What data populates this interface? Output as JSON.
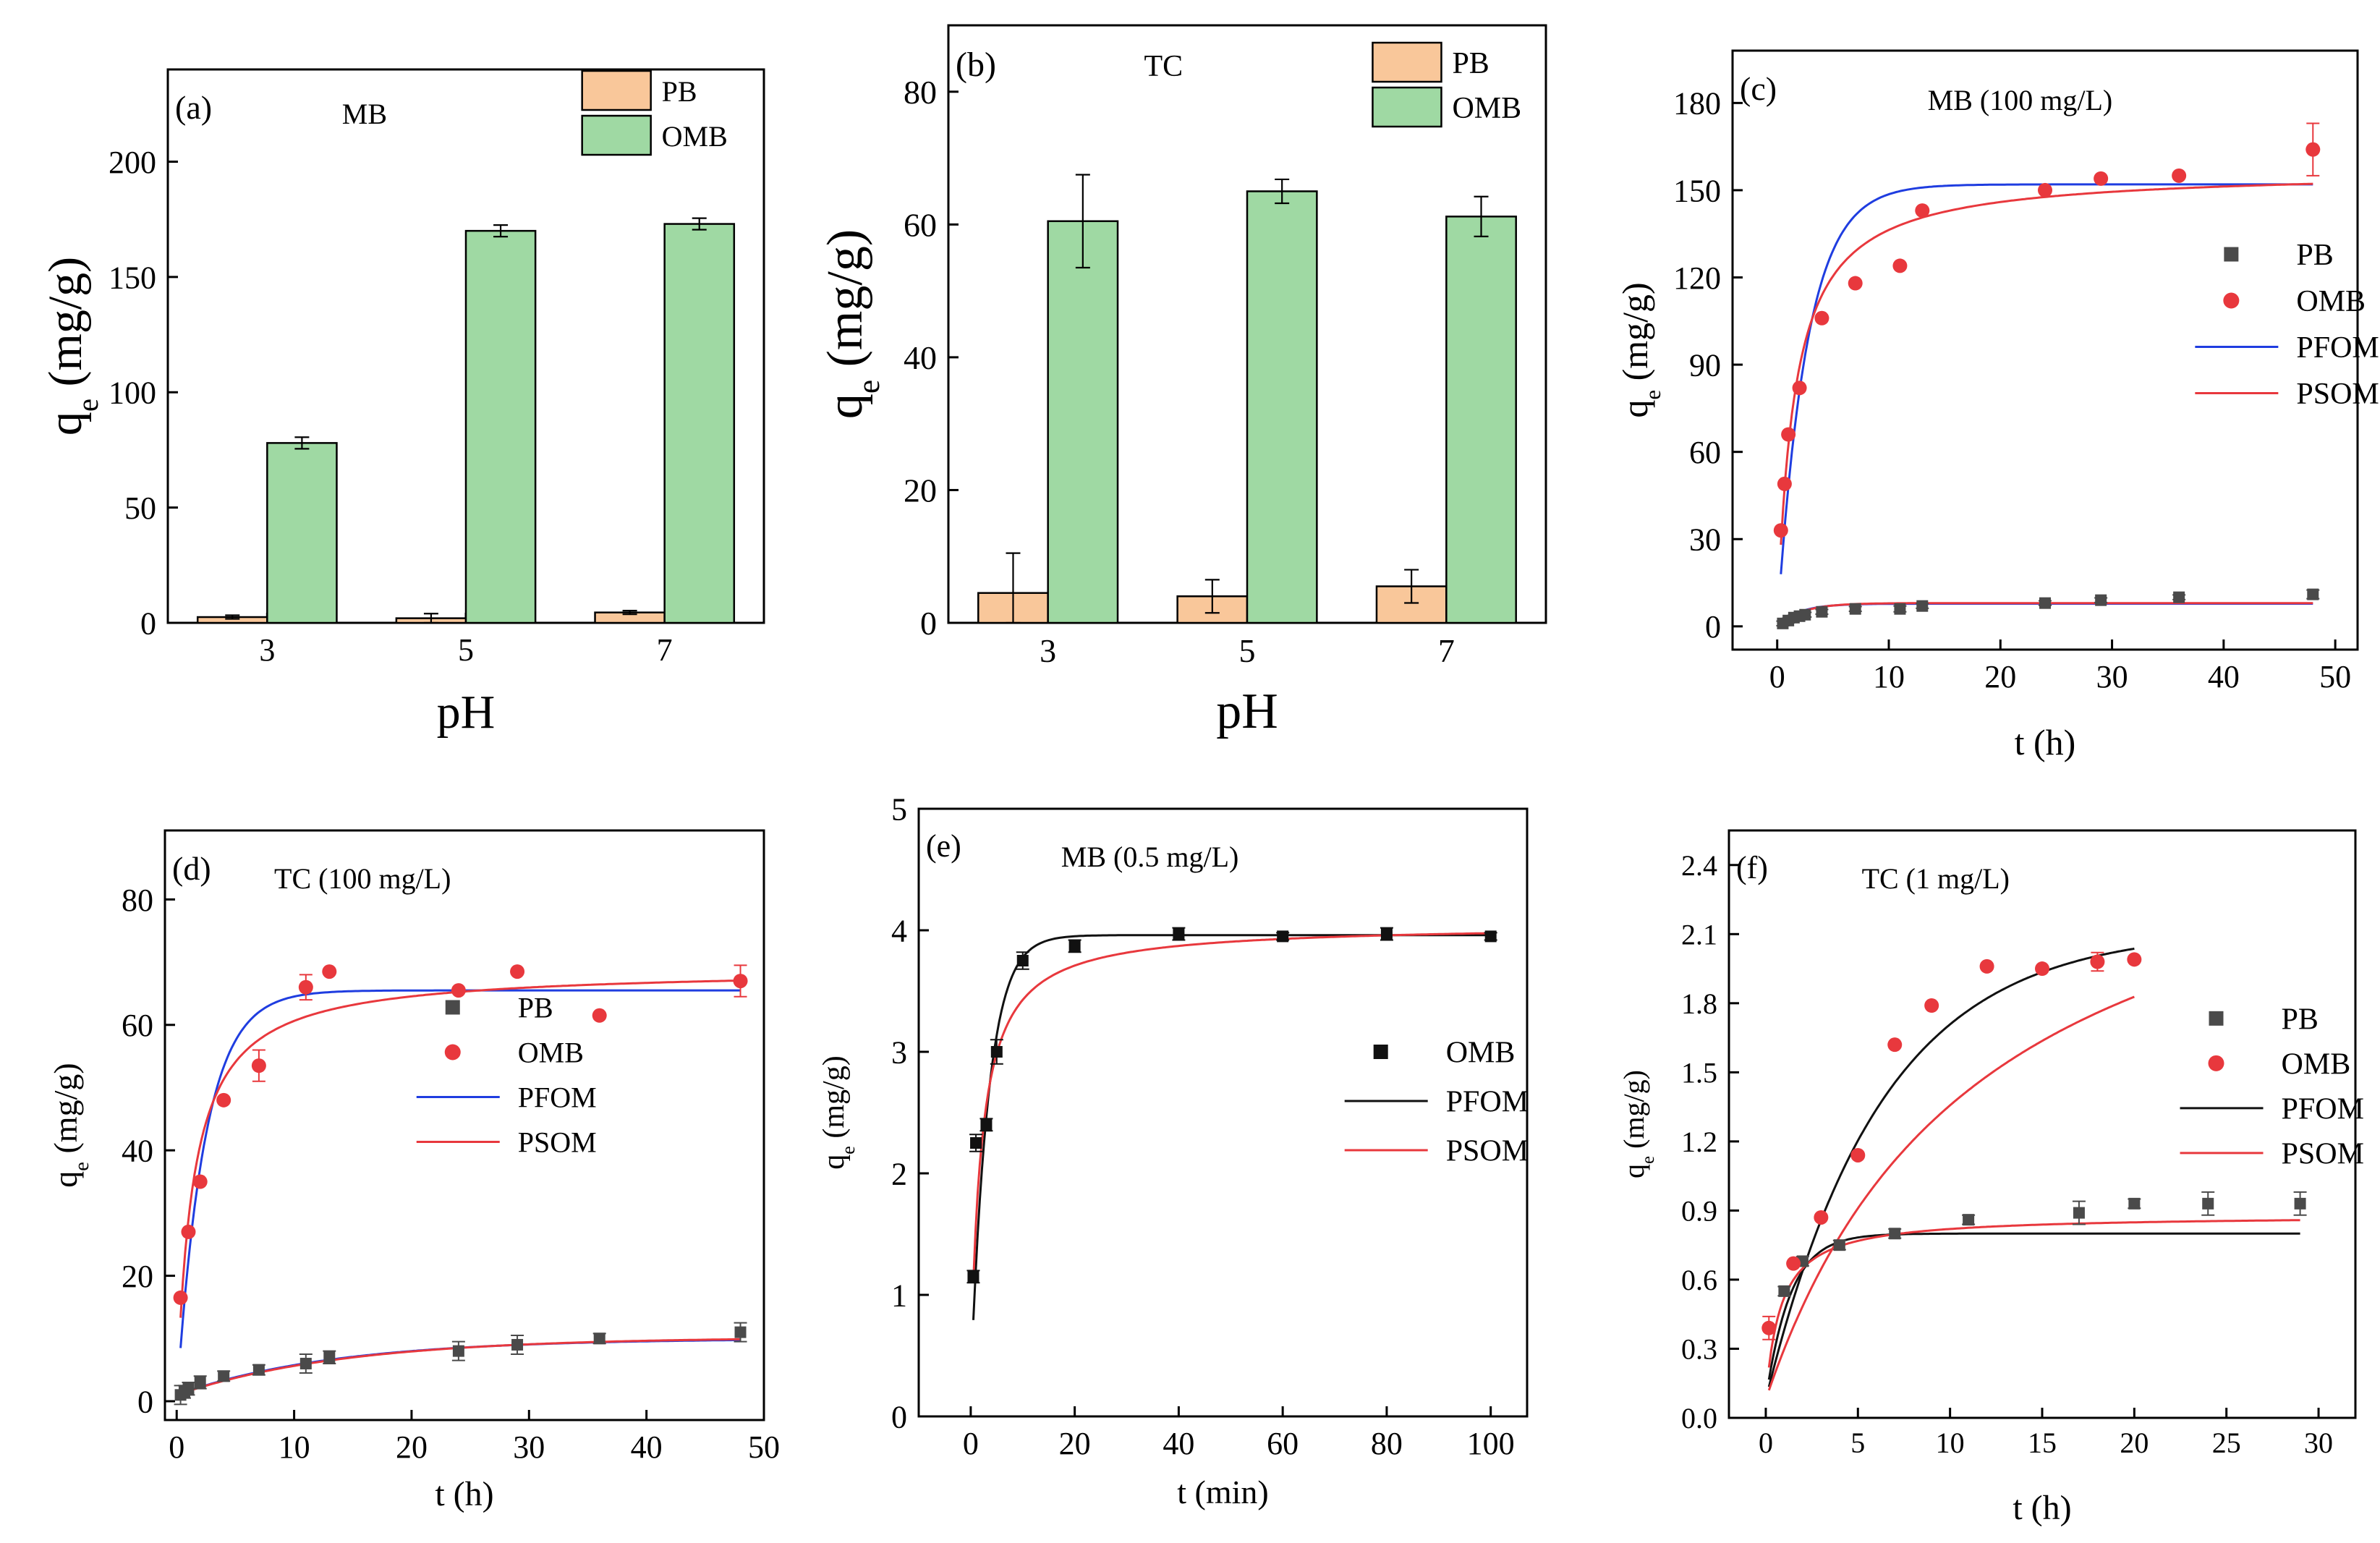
{
  "chart_data": [
    {
      "panel": "a",
      "type": "bar",
      "label": "(a)",
      "title": "MB",
      "xlabel": "pH",
      "ylabel": {
        "main": "q",
        "sub": "e",
        "unit": " (mg/g)"
      },
      "categories": [
        "3",
        "5",
        "7"
      ],
      "ylim": [
        0,
        240
      ],
      "yticks": [
        0,
        50,
        100,
        150,
        200
      ],
      "series": [
        {
          "name": "PB",
          "color": "#f9c79a",
          "values": [
            2.5,
            2,
            4.5
          ],
          "errors": [
            0.8,
            2,
            0.8
          ]
        },
        {
          "name": "OMB",
          "color": "#9fd9a3",
          "values": [
            78,
            170,
            173
          ],
          "errors": [
            2.5,
            2.5,
            2.5
          ]
        }
      ],
      "legend": "top-right"
    },
    {
      "panel": "b",
      "type": "bar",
      "label": "(b)",
      "title": "TC",
      "xlabel": "pH",
      "ylabel": {
        "main": "q",
        "sub": "e",
        "unit": " (mg/g)"
      },
      "categories": [
        "3",
        "5",
        "7"
      ],
      "ylim": [
        0,
        90
      ],
      "yticks": [
        0,
        20,
        40,
        60,
        80
      ],
      "series": [
        {
          "name": "PB",
          "color": "#f9c79a",
          "values": [
            4.5,
            4,
            5.5
          ],
          "errors": [
            6,
            2.5,
            2.5
          ]
        },
        {
          "name": "OMB",
          "color": "#9fd9a3",
          "values": [
            60.5,
            65,
            61.2
          ],
          "errors": [
            7,
            1.8,
            3
          ]
        }
      ],
      "legend": "top-right"
    },
    {
      "panel": "c",
      "type": "scatter",
      "label": "(c)",
      "title": "MB (100 mg/L)",
      "xlabel": "t (h)",
      "ylabel": {
        "main": "q",
        "sub": "e",
        "unit": " (mg/g)"
      },
      "xlim": [
        -4,
        52
      ],
      "ylim": [
        -8,
        198
      ],
      "xticks": [
        0,
        10,
        20,
        30,
        40,
        50
      ],
      "yticks": [
        0,
        30,
        60,
        90,
        120,
        150,
        180
      ],
      "legend": "middle-right",
      "series": [
        {
          "name": "PB",
          "marker": "square",
          "color": "#4a4a4a",
          "x": [
            0.5,
            1,
            1.5,
            2,
            2.5,
            4,
            7,
            11,
            13,
            24,
            29,
            36,
            48
          ],
          "y": [
            1,
            2,
            3,
            3.5,
            4,
            5,
            6,
            6,
            7,
            8,
            9,
            10,
            11
          ],
          "errors": [
            0.8,
            0.8,
            0.8,
            0.8,
            0.8,
            0.8,
            0.8,
            1,
            0.8,
            0.8,
            0.8,
            0.8,
            1.5
          ]
        },
        {
          "name": "OMB",
          "marker": "circle",
          "color": "#e8383d",
          "x": [
            0.33,
            0.66,
            1,
            2,
            4,
            7,
            11,
            13,
            24,
            29,
            36,
            48
          ],
          "y": [
            33,
            49,
            66,
            82,
            106,
            118,
            124,
            143,
            150,
            154,
            155,
            164
          ],
          "errors": [
            0,
            0,
            0,
            0,
            0,
            0,
            0,
            0,
            0,
            0,
            0,
            9
          ]
        },
        {
          "name": "PFOM",
          "type": "line",
          "color": "#1f3de0",
          "model": "pfo",
          "qe": 152,
          "k": 0.38,
          "x0": 0.33,
          "x1": 48
        },
        {
          "name": "PSOM",
          "type": "line",
          "color": "#e8383d",
          "model": "pso",
          "qe": 157,
          "k": 0.0042,
          "x0": 0.33,
          "x1": 48
        },
        {
          "name": "PB-fit",
          "type": "line",
          "color": "#1f3de0",
          "model": "pfo",
          "qe": 7.8,
          "k": 0.5,
          "x0": 0.5,
          "x1": 48,
          "legend": false
        },
        {
          "name": "PB-fit2",
          "type": "line",
          "color": "#e8383d",
          "model": "pfo",
          "qe": 8,
          "k": 0.45,
          "x0": 0.5,
          "x1": 48,
          "legend": false
        }
      ]
    },
    {
      "panel": "d",
      "type": "scatter",
      "label": "(d)",
      "title": "TC (100 mg/L)",
      "xlabel": "t (h)",
      "ylabel": {
        "main": "q",
        "sub": "e",
        "unit": " (mg/g)"
      },
      "xlim": [
        -1,
        50
      ],
      "ylim": [
        -3,
        91
      ],
      "xticks": [
        0,
        10,
        20,
        30,
        40,
        50
      ],
      "yticks": [
        0,
        20,
        40,
        60,
        80
      ],
      "legend": "middle-right",
      "series": [
        {
          "name": "PB",
          "marker": "square",
          "color": "#4a4a4a",
          "x": [
            0.33,
            0.66,
            1,
            2,
            4,
            7,
            11,
            13,
            24,
            29,
            36,
            48
          ],
          "y": [
            1,
            1.5,
            2,
            3,
            4,
            5,
            6,
            7,
            8,
            9,
            10,
            11
          ],
          "errors": [
            1.5,
            1,
            1,
            1,
            0.8,
            0.8,
            1.5,
            1,
            1.5,
            1.5,
            0.8,
            1.5
          ]
        },
        {
          "name": "OMB",
          "marker": "circle",
          "color": "#e8383d",
          "x": [
            0.33,
            1,
            2,
            4,
            7,
            11,
            13,
            24,
            29,
            36,
            48
          ],
          "y": [
            16.5,
            27,
            35,
            48,
            53.5,
            66,
            68.5,
            65.5,
            68.5,
            61.5,
            67
          ],
          "errors": [
            0,
            0,
            0,
            0,
            2.5,
            2,
            0,
            0,
            0,
            0,
            2.5
          ]
        },
        {
          "name": "PFOM",
          "type": "line",
          "color": "#1f3de0",
          "model": "pfo",
          "qe": 65.5,
          "k": 0.42,
          "x0": 0.33,
          "x1": 48
        },
        {
          "name": "PSOM",
          "type": "line",
          "color": "#e8383d",
          "model": "pso",
          "qe": 69,
          "k": 0.0105,
          "x0": 0.33,
          "x1": 48
        },
        {
          "name": "PB-fit",
          "type": "line",
          "color": "#1f3de0",
          "model": "pfo",
          "qe": 10,
          "k": 0.075,
          "x0": 0.33,
          "x1": 48,
          "y0": 1,
          "legend": false
        },
        {
          "name": "PB-fit2",
          "type": "line",
          "color": "#e8383d",
          "model": "pfo",
          "qe": 10.2,
          "k": 0.07,
          "x0": 0.33,
          "x1": 48,
          "y0": 1,
          "legend": false
        }
      ]
    },
    {
      "panel": "e",
      "type": "scatter",
      "label": "(e)",
      "title": "MB (0.5 mg/L)",
      "xlabel": "t (min)",
      "ylabel": {
        "main": "q",
        "sub": "e",
        "unit": " (mg/g)"
      },
      "xlim": [
        -10,
        107
      ],
      "ylim": [
        0,
        5
      ],
      "xticks": [
        0,
        20,
        40,
        60,
        80,
        100
      ],
      "yticks": [
        0,
        1,
        2,
        3,
        4,
        5
      ],
      "legend": "middle-right",
      "series": [
        {
          "name": "OMB",
          "marker": "square",
          "color": "#111111",
          "x": [
            0.5,
            1,
            3,
            5,
            10,
            20,
            40,
            60,
            80,
            100
          ],
          "y": [
            1.15,
            2.25,
            2.4,
            3,
            3.75,
            3.87,
            3.97,
            3.95,
            3.97,
            3.95
          ],
          "errors": [
            0.05,
            0.07,
            0.05,
            0.1,
            0.07,
            0.05,
            0.05,
            0.03,
            0.05,
            0.03
          ]
        },
        {
          "name": "PFOM",
          "type": "line",
          "color": "#111111",
          "model": "pfo",
          "qe": 3.96,
          "k": 0.3,
          "x0": 0.5,
          "x1": 100,
          "y0": 0.28
        },
        {
          "name": "PSOM",
          "type": "line",
          "color": "#e8383d",
          "model": "pso",
          "qe": 4.05,
          "k": 0.12,
          "x0": 0.5,
          "x1": 100,
          "y0": 0.4
        }
      ]
    },
    {
      "panel": "f",
      "type": "scatter",
      "label": "(f)",
      "title": "TC (1 mg/L)",
      "xlabel": "t (h)",
      "ylabel": {
        "main": "q",
        "sub": "e",
        "unit": " (mg/g)"
      },
      "xlim": [
        -2,
        32
      ],
      "ylim": [
        0,
        2.55
      ],
      "xticks": [
        0,
        5,
        10,
        15,
        20,
        25,
        30
      ],
      "yticks": [
        0.0,
        0.3,
        0.6,
        0.9,
        1.2,
        1.5,
        1.8,
        2.1,
        2.4
      ],
      "legend": "middle-right",
      "series": [
        {
          "name": "PB",
          "marker": "square",
          "color": "#4a4a4a",
          "x": [
            1,
            2,
            4,
            7,
            11,
            17,
            20,
            24,
            29
          ],
          "y": [
            0.55,
            0.68,
            0.75,
            0.8,
            0.86,
            0.89,
            0.93,
            0.93,
            0.93
          ],
          "errors": [
            0.02,
            0.02,
            0.02,
            0.02,
            0.02,
            0.05,
            0.02,
            0.05,
            0.05
          ]
        },
        {
          "name": "OMB",
          "marker": "circle",
          "color": "#e8383d",
          "x": [
            0.17,
            1.5,
            3,
            5,
            7,
            9,
            12,
            15,
            18,
            20
          ],
          "y": [
            0.39,
            0.67,
            0.87,
            1.14,
            1.62,
            1.79,
            1.96,
            1.95,
            1.98,
            1.99
          ],
          "errors": [
            0.05,
            0,
            0,
            0,
            0,
            0,
            0,
            0,
            0.04,
            0
          ]
        },
        {
          "name": "PFOM",
          "type": "line",
          "color": "#111111",
          "model": "pfo",
          "qe": 2.12,
          "k": 0.16,
          "x0": 0.17,
          "x1": 20,
          "y0": 0.08
        },
        {
          "name": "PSOM",
          "type": "line",
          "color": "#e8383d",
          "model": "pso",
          "qe": 2.85,
          "k": 0.03,
          "x0": 0.17,
          "x1": 20,
          "y0": 0.08
        },
        {
          "name": "PB-fit",
          "type": "line",
          "color": "#111111",
          "model": "pfo",
          "qe": 0.8,
          "k": 0.75,
          "x0": 0.17,
          "x1": 29,
          "y0": 0.08,
          "legend": false
        },
        {
          "name": "PB-fit2",
          "type": "line",
          "color": "#e8383d",
          "model": "pso",
          "qe": 0.88,
          "k": 1.4,
          "x0": 0.17,
          "x1": 29,
          "y0": 0.08,
          "legend": false
        }
      ]
    }
  ]
}
